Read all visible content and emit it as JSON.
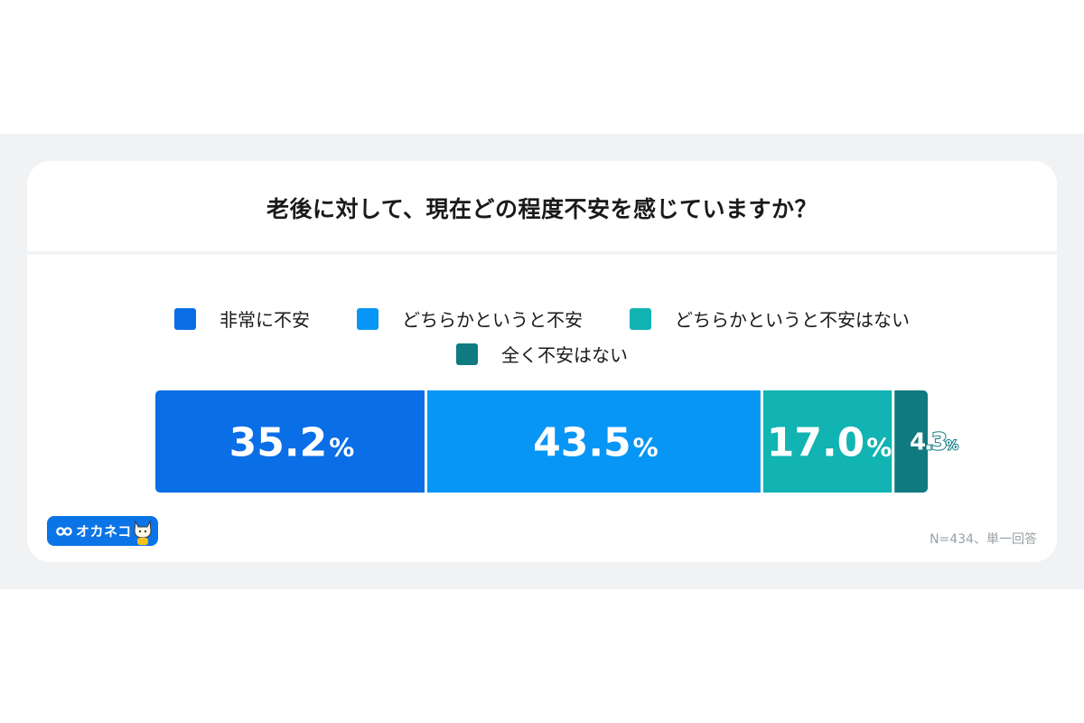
{
  "chart_data": {
    "type": "bar",
    "orientation": "horizontal-stacked-100",
    "title": "老後に対して、現在どの程度不安を感じていますか？",
    "unit": "%",
    "series": [
      {
        "name": "非常に不安",
        "value": 35.2,
        "label": "35.2",
        "color": "#0a6ee6"
      },
      {
        "name": "どちらかというと不安",
        "value": 43.5,
        "label": "43.5",
        "color": "#0896f6"
      },
      {
        "name": "どちらかというと不安はない",
        "value": 17.0,
        "label": "17.0",
        "color": "#11b3b3"
      },
      {
        "name": "全く不安はない",
        "value": 4.3,
        "label": "4.3",
        "color": "#0f7a80"
      }
    ],
    "legend_position": "top"
  },
  "footer": {
    "note": "N=434、単一回答",
    "brand": "オカネコ"
  }
}
